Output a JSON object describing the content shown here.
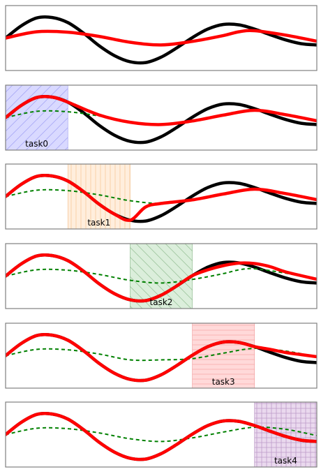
{
  "chart_data": {
    "type": "line",
    "description_of_panels": "six stacked panels; panel 0 shows target vs prediction, panels 1-5 each highlight one task region",
    "x_domain": [
      0,
      1
    ],
    "y_domain": [
      -1.35,
      1.35
    ],
    "target_curve": {
      "x": [
        0.0,
        0.05,
        0.1,
        0.15,
        0.2,
        0.25,
        0.3,
        0.35,
        0.4,
        0.45,
        0.5,
        0.55,
        0.6,
        0.65,
        0.7,
        0.75,
        0.8,
        0.85,
        0.9,
        0.95,
        1.0
      ],
      "y": [
        0.0,
        0.58,
        0.96,
        0.98,
        0.74,
        0.24,
        -0.36,
        -0.84,
        -1.13,
        -1.17,
        -0.91,
        -0.47,
        0.02,
        0.43,
        0.65,
        0.63,
        0.43,
        0.16,
        -0.09,
        -0.27,
        -0.33
      ],
      "color": "#000000"
    },
    "tasks": [
      {
        "label": "task0",
        "range": [
          0.0,
          0.2
        ],
        "fill": "#d9d9ff",
        "edge": "#8888ee",
        "hatch": "diag-up"
      },
      {
        "label": "task1",
        "range": [
          0.2,
          0.4
        ],
        "fill": "#ffeedd",
        "edge": "#f0b070",
        "hatch": "vertical"
      },
      {
        "label": "task2",
        "range": [
          0.4,
          0.6
        ],
        "fill": "#dbeedb",
        "edge": "#77aa77",
        "hatch": "diag-down"
      },
      {
        "label": "task3",
        "range": [
          0.6,
          0.8
        ],
        "fill": "#ffd9d9",
        "edge": "#ee8888",
        "hatch": "horizontal"
      },
      {
        "label": "task4",
        "range": [
          0.8,
          1.0
        ],
        "fill": "#ead9ee",
        "edge": "#a070b0",
        "hatch": "grid"
      }
    ],
    "panels": [
      {
        "task_index": null,
        "prediction": {
          "x": [
            0.0,
            0.1,
            0.2,
            0.3,
            0.4,
            0.5,
            0.6,
            0.7,
            0.75,
            0.8,
            0.9,
            1.0
          ],
          "y": [
            0.0,
            0.3,
            0.28,
            0.08,
            -0.2,
            -0.33,
            -0.16,
            0.12,
            0.3,
            0.35,
            0.14,
            -0.15
          ],
          "color": "#ff0000"
        },
        "previous": null
      },
      {
        "task_index": 0,
        "prediction": {
          "x": [
            0.0,
            0.05,
            0.1,
            0.15,
            0.2,
            0.3,
            0.4,
            0.5,
            0.6,
            0.7,
            0.8,
            0.9,
            1.0
          ],
          "y": [
            0.0,
            0.58,
            0.96,
            0.98,
            0.74,
            0.13,
            -0.22,
            -0.33,
            -0.16,
            0.12,
            0.35,
            0.14,
            -0.15
          ],
          "color": "#ff0000"
        },
        "previous": {
          "x": [
            0.0,
            0.1,
            0.2,
            0.3,
            0.4,
            0.5,
            0.6,
            0.7,
            0.75,
            0.8,
            0.9,
            1.0
          ],
          "y": [
            0.0,
            0.3,
            0.28,
            0.08,
            -0.2,
            -0.33,
            -0.16,
            0.12,
            0.3,
            0.35,
            0.14,
            -0.15
          ],
          "color": "#008000"
        }
      },
      {
        "task_index": 1,
        "prediction": {
          "x": [
            0.0,
            0.05,
            0.1,
            0.15,
            0.2,
            0.25,
            0.3,
            0.35,
            0.4,
            0.45,
            0.5,
            0.6,
            0.7,
            0.8,
            0.9,
            1.0
          ],
          "y": [
            0.0,
            0.58,
            0.96,
            0.98,
            0.74,
            0.24,
            -0.36,
            -0.84,
            -1.13,
            -0.5,
            -0.33,
            -0.16,
            0.12,
            0.35,
            0.14,
            -0.15
          ],
          "color": "#ff0000"
        },
        "previous": {
          "x": [
            0.0,
            0.1,
            0.2,
            0.3,
            0.4,
            0.5,
            0.6,
            0.7,
            0.8,
            0.9,
            1.0
          ],
          "y": [
            0.0,
            0.3,
            0.28,
            0.08,
            -0.2,
            -0.33,
            -0.16,
            0.12,
            0.35,
            0.14,
            -0.15
          ],
          "color": "#008000"
        }
      },
      {
        "task_index": 2,
        "prediction": {
          "x": [
            0.0,
            0.05,
            0.1,
            0.15,
            0.2,
            0.25,
            0.3,
            0.35,
            0.4,
            0.45,
            0.5,
            0.55,
            0.6,
            0.65,
            0.7,
            0.75,
            0.8,
            0.85,
            0.9,
            1.0
          ],
          "y": [
            0.0,
            0.58,
            0.96,
            0.98,
            0.74,
            0.24,
            -0.36,
            -0.84,
            -1.13,
            -1.17,
            -0.91,
            -0.47,
            0.02,
            0.3,
            0.5,
            0.62,
            0.6,
            0.45,
            0.2,
            -0.15
          ],
          "color": "#ff0000"
        },
        "previous": {
          "x": [
            0.0,
            0.1,
            0.2,
            0.3,
            0.4,
            0.5,
            0.6,
            0.7,
            0.75,
            0.8,
            0.9,
            1.0
          ],
          "y": [
            0.0,
            0.3,
            0.28,
            0.08,
            -0.2,
            -0.33,
            -0.16,
            0.12,
            0.3,
            0.35,
            0.14,
            -0.15
          ],
          "color": "#008000"
        }
      },
      {
        "task_index": 3,
        "prediction": {
          "x": [
            0.0,
            0.05,
            0.1,
            0.15,
            0.2,
            0.25,
            0.3,
            0.35,
            0.4,
            0.45,
            0.5,
            0.55,
            0.6,
            0.65,
            0.7,
            0.75,
            0.8,
            0.85,
            0.9,
            0.95,
            1.0
          ],
          "y": [
            0.0,
            0.58,
            0.96,
            0.98,
            0.74,
            0.24,
            -0.36,
            -0.84,
            -1.13,
            -1.17,
            -0.91,
            -0.47,
            0.02,
            0.43,
            0.65,
            0.63,
            0.43,
            0.3,
            0.15,
            0.05,
            -0.05
          ],
          "color": "#ff0000"
        },
        "previous": {
          "x": [
            0.0,
            0.1,
            0.2,
            0.3,
            0.4,
            0.5,
            0.6,
            0.7,
            0.8,
            0.9,
            1.0
          ],
          "y": [
            0.0,
            0.3,
            0.28,
            0.08,
            -0.2,
            -0.2,
            -0.14,
            0.12,
            0.35,
            0.22,
            -0.05
          ],
          "color": "#008000"
        }
      },
      {
        "task_index": 4,
        "prediction": {
          "x": [
            0.0,
            0.05,
            0.1,
            0.15,
            0.2,
            0.25,
            0.3,
            0.35,
            0.4,
            0.45,
            0.5,
            0.55,
            0.6,
            0.65,
            0.7,
            0.75,
            0.8,
            0.85,
            0.9,
            0.95,
            1.0
          ],
          "y": [
            0.0,
            0.58,
            0.96,
            0.98,
            0.74,
            0.24,
            -0.36,
            -0.84,
            -1.13,
            -1.17,
            -0.91,
            -0.47,
            0.02,
            0.43,
            0.65,
            0.63,
            0.43,
            0.16,
            -0.09,
            -0.27,
            -0.33
          ],
          "color": "#ff0000"
        },
        "previous": {
          "x": [
            0.0,
            0.1,
            0.2,
            0.3,
            0.4,
            0.5,
            0.6,
            0.7,
            0.8,
            0.9,
            1.0
          ],
          "y": [
            0.0,
            0.3,
            0.28,
            0.08,
            -0.2,
            -0.33,
            -0.16,
            0.12,
            0.35,
            0.25,
            -0.05
          ],
          "color": "#008000"
        }
      }
    ],
    "colors": {
      "frame": "#808080",
      "target": "#000000",
      "prediction": "#ff0000",
      "previous": "#008000"
    }
  }
}
